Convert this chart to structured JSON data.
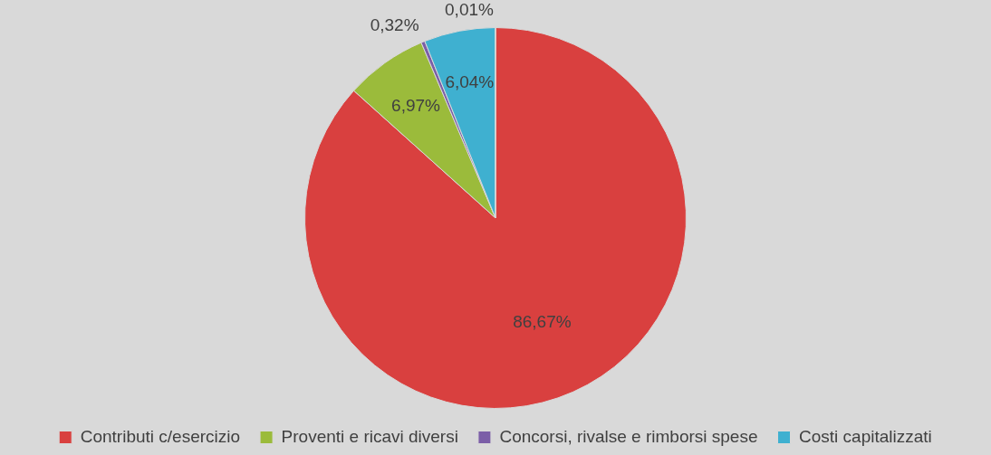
{
  "chart_data": {
    "type": "pie",
    "categories": [
      "Contributi c/esercizio",
      "Proventi e ricavi diversi",
      "Concorsi, rivalse e rimborsi spese",
      "Costi capitalizzati",
      null
    ],
    "values": [
      86.67,
      6.97,
      0.32,
      6.04,
      0.01
    ],
    "value_labels": [
      "86,67%",
      "6,97%",
      "0,32%",
      "6,04%",
      "0,01%"
    ],
    "colors": [
      "#d9403f",
      "#9bbb3b",
      "#7b5ea7",
      "#3fb0d0",
      "#f79646"
    ],
    "legend": "bottom"
  }
}
